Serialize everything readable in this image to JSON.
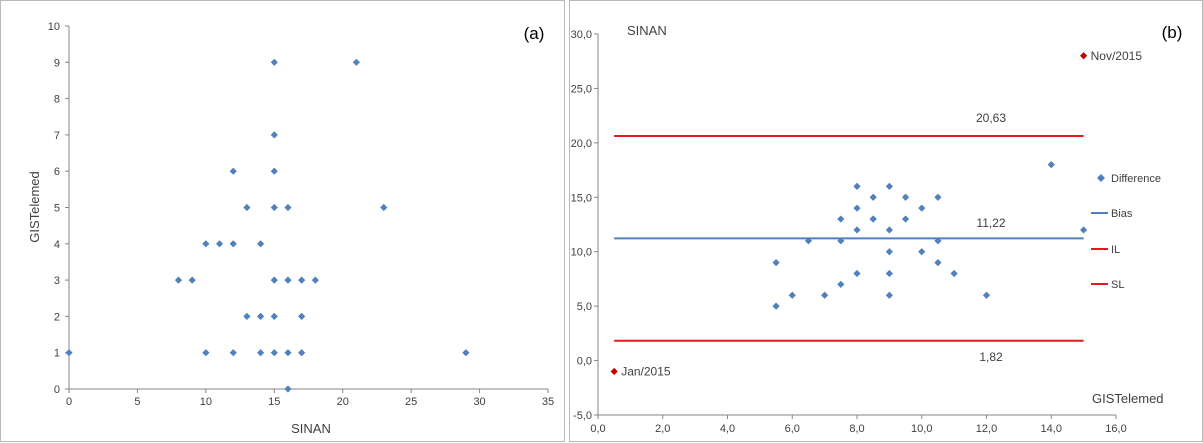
{
  "chart_data": [
    {
      "type": "scatter",
      "panel_label": "(a)",
      "xlabel": "SINAN",
      "ylabel": "GISTelemed",
      "xlim": [
        0,
        35
      ],
      "ylim": [
        0,
        10
      ],
      "x_ticks": [
        "0",
        "5",
        "10",
        "15",
        "20",
        "25",
        "30",
        "35"
      ],
      "y_ticks": [
        "0",
        "1",
        "2",
        "3",
        "4",
        "5",
        "6",
        "7",
        "8",
        "9",
        "10"
      ],
      "grid": false,
      "marker_color": "#4f81bd",
      "points": [
        [
          0,
          1
        ],
        [
          8,
          3
        ],
        [
          9,
          3
        ],
        [
          10,
          4
        ],
        [
          10,
          1
        ],
        [
          11,
          4
        ],
        [
          12,
          6
        ],
        [
          12,
          4
        ],
        [
          12,
          1
        ],
        [
          13,
          5
        ],
        [
          13,
          2
        ],
        [
          14,
          4
        ],
        [
          14,
          2
        ],
        [
          14,
          1
        ],
        [
          15,
          9
        ],
        [
          15,
          7
        ],
        [
          15,
          6
        ],
        [
          15,
          5
        ],
        [
          15,
          3
        ],
        [
          15,
          2
        ],
        [
          15,
          1
        ],
        [
          16,
          5
        ],
        [
          16,
          3
        ],
        [
          16,
          1
        ],
        [
          16,
          0
        ],
        [
          17,
          3
        ],
        [
          17,
          2
        ],
        [
          17,
          1
        ],
        [
          18,
          3
        ],
        [
          21,
          9
        ],
        [
          23,
          5
        ],
        [
          29,
          1
        ]
      ]
    },
    {
      "type": "scatter",
      "panel_label": "(b)",
      "title": "SINAN",
      "xlabel": "GISTelemed",
      "ylabel": "",
      "xlim": [
        0,
        16
      ],
      "ylim": [
        -5,
        30
      ],
      "x_ticks": [
        "0,0",
        "2,0",
        "4,0",
        "6,0",
        "8,0",
        "10,0",
        "12,0",
        "14,0",
        "16,0"
      ],
      "y_ticks": [
        "-5,0",
        "0,0",
        "5,0",
        "10,0",
        "15,0",
        "20,0",
        "25,0",
        "30,0"
      ],
      "grid": false,
      "legend_position": "right",
      "series": [
        {
          "name": "Difference",
          "color": "#4f81bd",
          "points": [
            [
              5.5,
              9
            ],
            [
              5.5,
              5
            ],
            [
              6,
              6
            ],
            [
              6.5,
              11
            ],
            [
              7,
              6
            ],
            [
              7.5,
              13
            ],
            [
              7.5,
              11
            ],
            [
              7.5,
              7
            ],
            [
              8,
              16
            ],
            [
              8,
              14
            ],
            [
              8,
              12
            ],
            [
              8,
              8
            ],
            [
              8.5,
              15
            ],
            [
              8.5,
              13
            ],
            [
              8.5,
              13
            ],
            [
              9,
              16
            ],
            [
              9,
              12
            ],
            [
              9,
              10
            ],
            [
              9,
              8
            ],
            [
              9,
              6
            ],
            [
              9.5,
              15
            ],
            [
              9.5,
              13
            ],
            [
              10,
              14
            ],
            [
              10,
              10
            ],
            [
              10.5,
              15
            ],
            [
              10.5,
              11
            ],
            [
              10.5,
              9
            ],
            [
              11,
              8
            ],
            [
              12,
              6
            ],
            [
              14,
              18
            ],
            [
              15,
              12
            ]
          ]
        },
        {
          "name": "Bias",
          "color": "#4f81bd",
          "y": 11.22,
          "x_range": [
            0.5,
            15
          ]
        },
        {
          "name": "IL",
          "color": "#e31a1c",
          "y": 1.82,
          "x_range": [
            0.5,
            15
          ]
        },
        {
          "name": "SL",
          "color": "#e31a1c",
          "y": 20.63,
          "x_range": [
            0.5,
            15
          ]
        }
      ],
      "line_labels": [
        "20,63",
        "11,22",
        "1,82"
      ],
      "outliers": [
        {
          "label": "Nov/2015",
          "x": 15,
          "y": 28,
          "color": "#c00000"
        },
        {
          "label": "Jan/2015",
          "x": 0.5,
          "y": -1,
          "color": "#c00000"
        }
      ]
    }
  ]
}
